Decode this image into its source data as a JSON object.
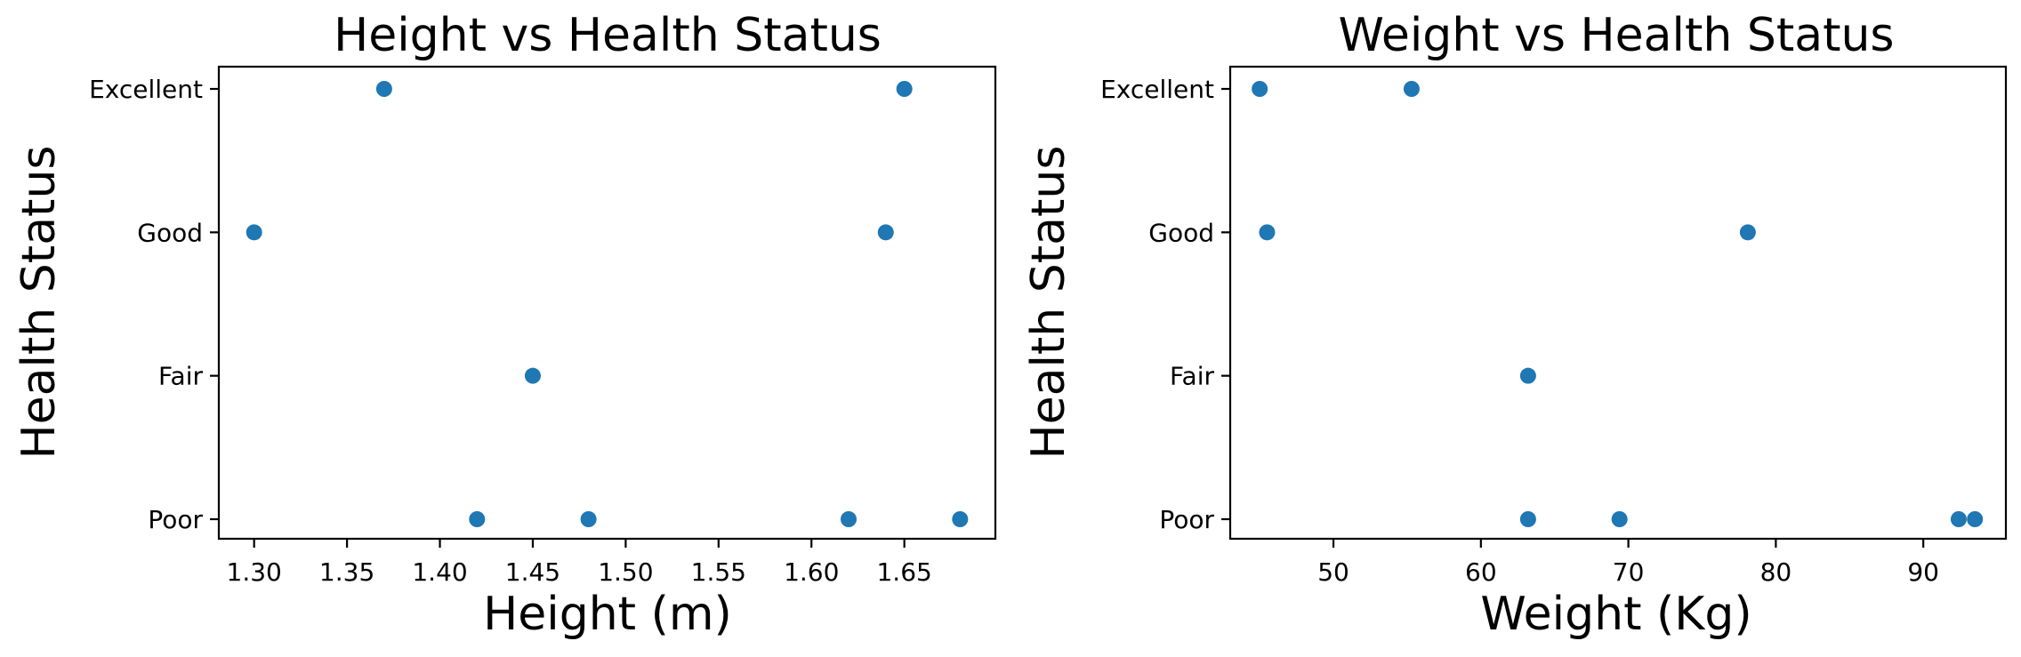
{
  "colors": {
    "marker": "#1f77b4",
    "axis": "#000000",
    "background": "#ffffff"
  },
  "chart_data": [
    {
      "type": "scatter",
      "title": "Height vs Health Status",
      "xlabel": "Height (m)",
      "ylabel": "Health Status",
      "x_ticks": [
        "1.30",
        "1.35",
        "1.40",
        "1.45",
        "1.50",
        "1.55",
        "1.60",
        "1.65"
      ],
      "xlim": [
        1.281,
        1.699
      ],
      "y_categories": [
        "Poor",
        "Fair",
        "Good",
        "Excellent"
      ],
      "grid": false,
      "series": [
        {
          "points": [
            {
              "x": 1.37,
              "y": "Excellent"
            },
            {
              "x": 1.65,
              "y": "Excellent"
            },
            {
              "x": 1.3,
              "y": "Good"
            },
            {
              "x": 1.64,
              "y": "Good"
            },
            {
              "x": 1.45,
              "y": "Fair"
            },
            {
              "x": 1.42,
              "y": "Poor"
            },
            {
              "x": 1.48,
              "y": "Poor"
            },
            {
              "x": 1.62,
              "y": "Poor"
            },
            {
              "x": 1.68,
              "y": "Poor"
            }
          ]
        }
      ]
    },
    {
      "type": "scatter",
      "title": "Weight vs Health Status",
      "xlabel": "Weight (Kg)",
      "ylabel": "Health Status",
      "x_ticks": [
        "50",
        "60",
        "70",
        "80",
        "90"
      ],
      "xlim": [
        43.0,
        95.6
      ],
      "y_categories": [
        "Poor",
        "Fair",
        "Good",
        "Excellent"
      ],
      "grid": false,
      "series": [
        {
          "points": [
            {
              "x": 45.0,
              "y": "Excellent"
            },
            {
              "x": 55.3,
              "y": "Excellent"
            },
            {
              "x": 45.5,
              "y": "Good"
            },
            {
              "x": 78.1,
              "y": "Good"
            },
            {
              "x": 63.2,
              "y": "Fair"
            },
            {
              "x": 63.2,
              "y": "Poor"
            },
            {
              "x": 69.4,
              "y": "Poor"
            },
            {
              "x": 92.4,
              "y": "Poor"
            },
            {
              "x": 93.5,
              "y": "Poor"
            }
          ]
        }
      ]
    }
  ]
}
